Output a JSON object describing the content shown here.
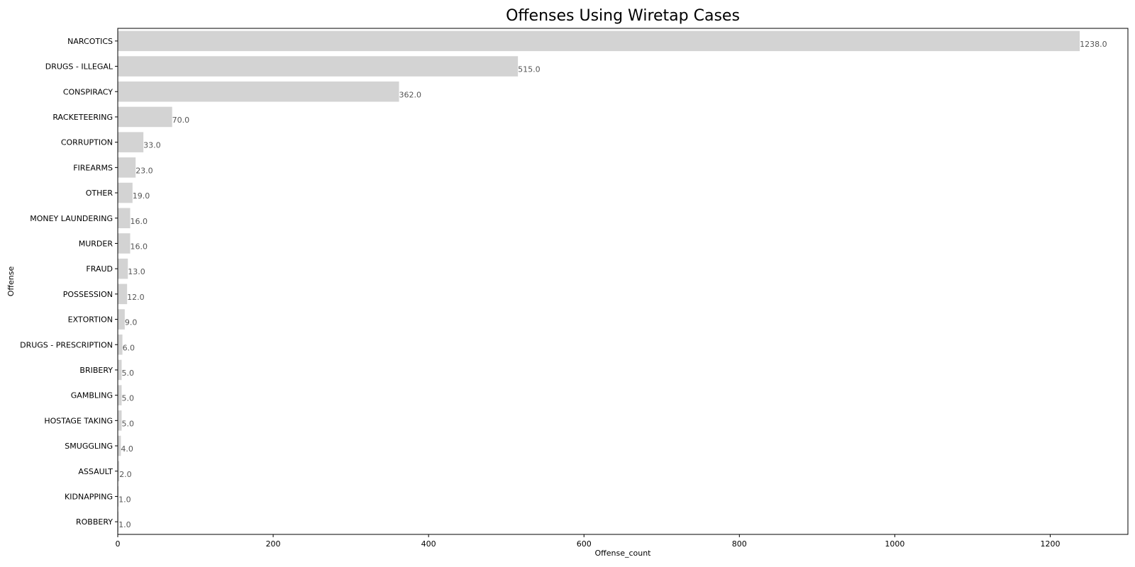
{
  "chart_data": {
    "type": "bar",
    "orientation": "horizontal",
    "title": "Offenses Using Wiretap Cases",
    "xlabel": "Offense_count",
    "ylabel": "Offense",
    "xlim": [
      0,
      1300
    ],
    "x_ticks": [
      0,
      200,
      400,
      600,
      800,
      1000,
      1200
    ],
    "grid": false,
    "categories": [
      "NARCOTICS",
      "DRUGS - ILLEGAL",
      "CONSPIRACY",
      "RACKETEERING",
      "CORRUPTION",
      "FIREARMS",
      "OTHER",
      "MONEY LAUNDERING",
      "MURDER",
      "FRAUD",
      "POSSESSION",
      "EXTORTION",
      "DRUGS - PRESCRIPTION",
      "BRIBERY",
      "GAMBLING",
      "HOSTAGE TAKING",
      "SMUGGLING",
      "ASSAULT",
      "KIDNAPPING",
      "ROBBERY"
    ],
    "values": [
      1238,
      515,
      362,
      70,
      33,
      23,
      19,
      16,
      16,
      13,
      12,
      9,
      6,
      5,
      5,
      5,
      4,
      2,
      1,
      1
    ],
    "value_labels": [
      "1238.0",
      "515.0",
      "362.0",
      "70.0",
      "33.0",
      "23.0",
      "19.0",
      "16.0",
      "16.0",
      "13.0",
      "12.0",
      "9.0",
      "6.0",
      "5.0",
      "5.0",
      "5.0",
      "4.0",
      "2.0",
      "1.0",
      "1.0"
    ],
    "bar_color": "#d3d3d3",
    "label_color": "#555555"
  }
}
